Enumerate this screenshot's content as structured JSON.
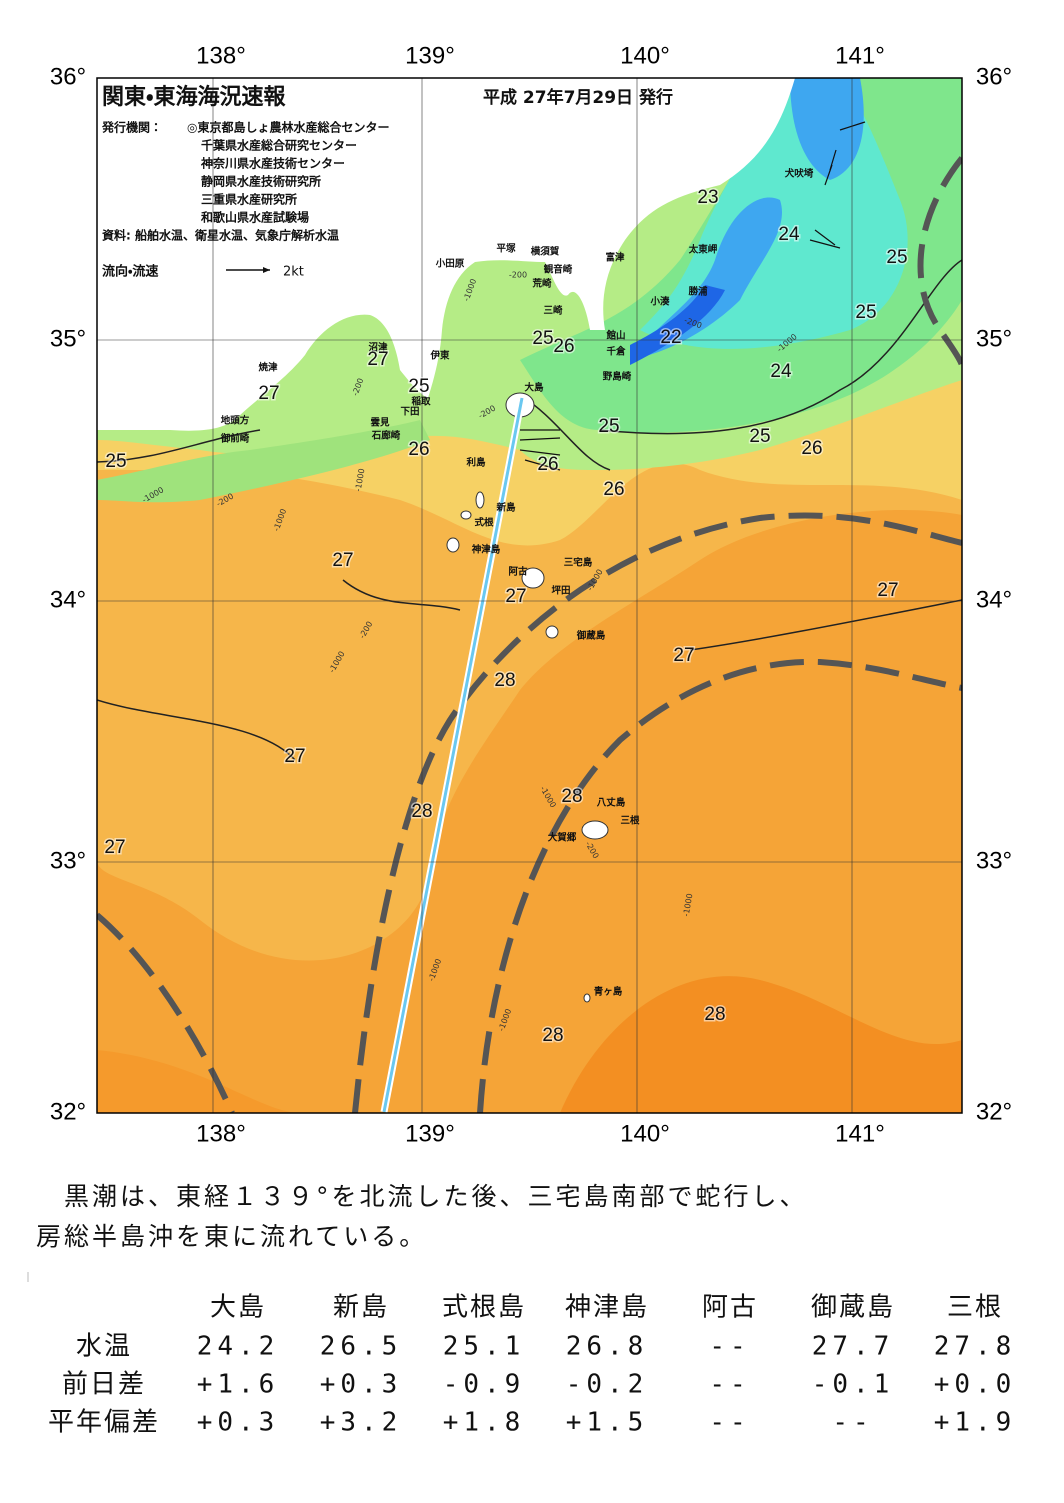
{
  "header": {
    "title": "関東・東海海況速報",
    "date": "平成 27年7月29日 発行",
    "issuer_label": "発行機関：",
    "issuers": [
      "◎東京都島しょ農林水産総合センター",
      "千葉県水産総合研究センター",
      "神奈川県水産技術センター",
      "静岡県水産技術研究所",
      "三重県水産研究所",
      "和歌山県水産試験場"
    ],
    "sources": "資料: 船舶水温、衛星水温、気象庁解析水温",
    "legend_label": "流向・流速",
    "legend_speed": "2kt"
  },
  "axes": {
    "lon_labels": [
      "138°",
      "139°",
      "140°",
      "141°"
    ],
    "lat_labels": [
      "36°",
      "35°",
      "34°",
      "33°",
      "32°"
    ]
  },
  "places": [
    "犬吠埼",
    "太東岬",
    "富津",
    "勝浦",
    "小湊",
    "館山",
    "千倉",
    "野島崎",
    "横須賀",
    "観音崎",
    "荒崎",
    "三崎",
    "平塚",
    "小田原",
    "伊東",
    "沼津",
    "稲取",
    "下田",
    "雲見",
    "石廊崎",
    "焼津",
    "地頭方",
    "御前崎",
    "大島",
    "利島",
    "新島",
    "式根",
    "神津島",
    "三宅島",
    "阿古",
    "坪田",
    "御蔵島",
    "八丈島",
    "三根",
    "大賀郷",
    "青ヶ島"
  ],
  "isotherm_labels": [
    "23",
    "24",
    "25",
    "25",
    "22",
    "24",
    "25",
    "26",
    "25",
    "25",
    "26",
    "27",
    "25",
    "27",
    "26",
    "25",
    "26",
    "26",
    "27",
    "27",
    "27",
    "27",
    "28",
    "27",
    "28",
    "28",
    "27",
    "28",
    "28"
  ],
  "depth_labels": [
    "-1000",
    "-200",
    "-200",
    "-200",
    "-1000",
    "-200",
    "-1000",
    "-1000",
    "-200",
    "-1000",
    "-1000",
    "-200",
    "-1000",
    "-1000",
    "-1000",
    "-200",
    "-1000",
    "-1000"
  ],
  "summary": [
    "　黒潮は、東経１３９°を北流した後、三宅島南部で蛇行し、",
    "房総半島沖を東に流れている。"
  ],
  "table": {
    "columns": [
      "大島",
      "新島",
      "式根島",
      "神津島",
      "阿古",
      "御蔵島",
      "三根"
    ],
    "rows": [
      {
        "label": "水温",
        "cells": [
          "24.2",
          "26.5",
          "25.1",
          "26.8",
          "--",
          "27.7",
          "27.8"
        ]
      },
      {
        "label": "前日差",
        "cells": [
          "+1.6",
          "+0.3",
          "-0.9",
          "-0.2",
          "--",
          "-0.1",
          "+0.0"
        ]
      },
      {
        "label": "平年偏差",
        "cells": [
          "+0.3",
          "+3.2",
          "+1.8",
          "+1.5",
          "--",
          "--",
          "+1.9"
        ]
      }
    ]
  }
}
